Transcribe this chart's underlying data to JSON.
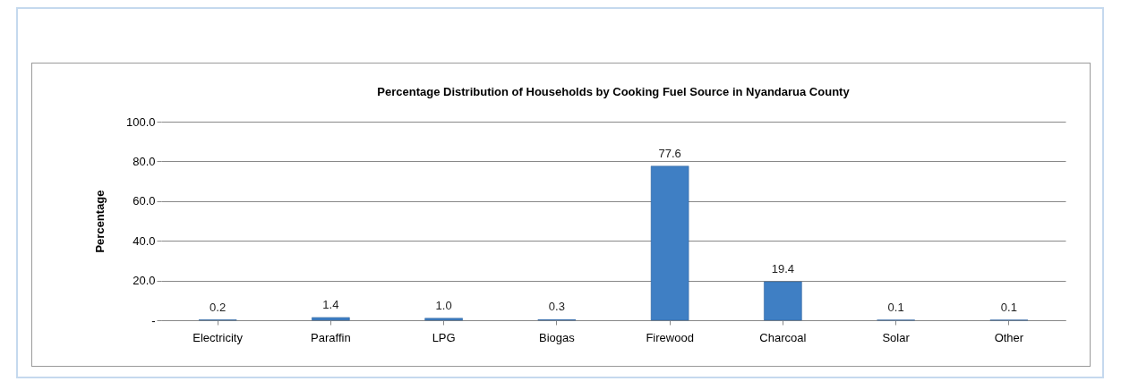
{
  "chart_data": {
    "type": "bar",
    "title": "Percentage Distribution of Households by Cooking Fuel Source in Nyandarua County",
    "ylabel": "Percentage",
    "categories": [
      "Electricity",
      "Paraffin",
      "LPG",
      "Biogas",
      "Firewood",
      "Charcoal",
      "Solar",
      "Other"
    ],
    "values": [
      0.2,
      1.4,
      1.0,
      0.3,
      77.6,
      19.4,
      0.1,
      0.1
    ],
    "value_labels": [
      "0.2",
      "1.4",
      "1.0",
      "0.3",
      "77.6",
      "19.4",
      "0.1",
      "0.1"
    ],
    "color": "#3f7fc4",
    "ylim": [
      0,
      100
    ],
    "yticks": [
      {
        "value": 0,
        "label": "-"
      },
      {
        "value": 20,
        "label": "20.0"
      },
      {
        "value": 40,
        "label": "40.0"
      },
      {
        "value": 60,
        "label": "60.0"
      },
      {
        "value": 80,
        "label": "80.0"
      },
      {
        "value": 100,
        "label": "100.0"
      }
    ],
    "grid": "y"
  }
}
